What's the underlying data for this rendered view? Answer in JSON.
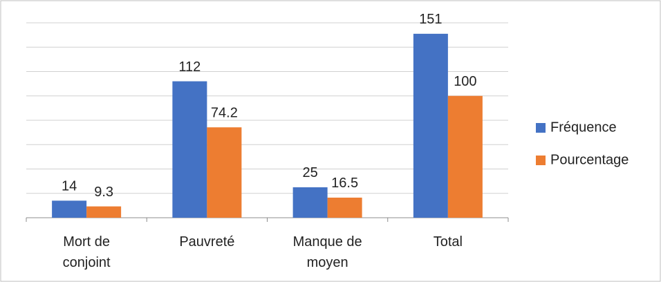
{
  "chart_data": {
    "type": "bar",
    "categories": [
      "Mort de conjoint",
      "Pauvreté",
      "Manque de moyen",
      "Total"
    ],
    "series": [
      {
        "name": "Fréquence",
        "color": "#4472c4",
        "values": [
          14,
          112,
          25,
          151
        ]
      },
      {
        "name": "Pourcentage",
        "color": "#ed7d31",
        "values": [
          9.3,
          74.2,
          16.5,
          100
        ]
      }
    ],
    "ylim": [
      0,
      160
    ],
    "yticks": [
      0,
      20,
      40,
      60,
      80,
      100,
      120,
      140,
      160
    ],
    "grid": true,
    "legend": "right"
  }
}
